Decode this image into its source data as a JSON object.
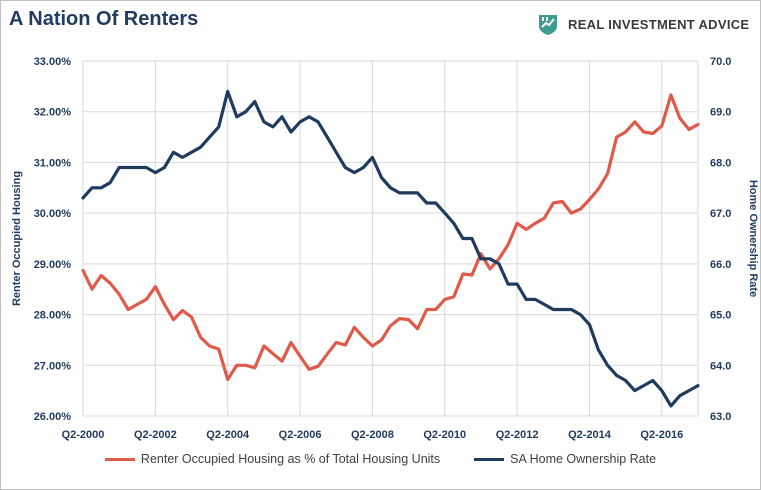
{
  "title": "A Nation Of Renters",
  "brand": {
    "text": "REAL INVESTMENT ADVICE",
    "icon": "graph-shield-icon",
    "icon_color": "#3d9b8f"
  },
  "colors": {
    "renter": "#e05a4a",
    "homeowner": "#1f3b5e",
    "grid": "#d9d9d9",
    "axis_text": "#1f3b5e"
  },
  "chart_data": {
    "type": "line",
    "x_tick_labels": [
      "Q2-2000",
      "Q2-2002",
      "Q2-2004",
      "Q2-2006",
      "Q2-2008",
      "Q2-2010",
      "Q2-2012",
      "Q2-2014",
      "Q2-2016"
    ],
    "x_start": "Q2-2000",
    "y_left": {
      "label": "Renter Occupied  Housing",
      "range": [
        26.0,
        33.0
      ],
      "ticks": [
        "26.00%",
        "27.00%",
        "28.00%",
        "29.00%",
        "30.00%",
        "31.00%",
        "32.00%",
        "33.00%"
      ]
    },
    "y_right": {
      "label": "Home Ownership Rate",
      "range": [
        63.0,
        70.0
      ],
      "ticks": [
        "63.0",
        "64.0",
        "65.0",
        "66.0",
        "67.0",
        "68.0",
        "69.0",
        "70.0"
      ]
    },
    "grid": true,
    "legend_position": "bottom",
    "series": [
      {
        "name": "Renter Occupied Housing as % of Total Housing Units",
        "axis": "left",
        "values": [
          28.87,
          28.5,
          28.77,
          28.62,
          28.4,
          28.1,
          28.2,
          28.3,
          28.55,
          28.2,
          27.9,
          28.08,
          27.95,
          27.55,
          27.38,
          27.32,
          26.72,
          27.0,
          27.0,
          26.95,
          27.38,
          27.23,
          27.08,
          27.45,
          27.18,
          26.92,
          26.98,
          27.22,
          27.45,
          27.4,
          27.75,
          27.55,
          27.38,
          27.5,
          27.78,
          27.92,
          27.9,
          27.72,
          28.1,
          28.1,
          28.3,
          28.35,
          28.8,
          28.78,
          29.2,
          28.9,
          29.1,
          29.38,
          29.8,
          29.68,
          29.8,
          29.9,
          30.2,
          30.23,
          30.0,
          30.08,
          30.27,
          30.48,
          30.78,
          31.5,
          31.6,
          31.8,
          31.6,
          31.57,
          31.72,
          32.33,
          31.87,
          31.65,
          31.75
        ]
      },
      {
        "name": "SA Home Ownership Rate",
        "axis": "right",
        "values": [
          67.3,
          67.5,
          67.5,
          67.6,
          67.9,
          67.9,
          67.9,
          67.9,
          67.8,
          67.9,
          68.2,
          68.1,
          68.2,
          68.3,
          68.5,
          68.7,
          69.4,
          68.9,
          69.0,
          69.2,
          68.8,
          68.7,
          68.9,
          68.6,
          68.8,
          68.9,
          68.8,
          68.5,
          68.2,
          67.9,
          67.8,
          67.9,
          68.1,
          67.7,
          67.5,
          67.4,
          67.4,
          67.4,
          67.2,
          67.2,
          67.0,
          66.8,
          66.5,
          66.5,
          66.1,
          66.1,
          66.0,
          65.6,
          65.6,
          65.3,
          65.3,
          65.2,
          65.1,
          65.1,
          65.1,
          65.0,
          64.8,
          64.3,
          64.0,
          63.8,
          63.7,
          63.5,
          63.6,
          63.7,
          63.5,
          63.2,
          63.4,
          63.5,
          63.6
        ]
      }
    ]
  }
}
